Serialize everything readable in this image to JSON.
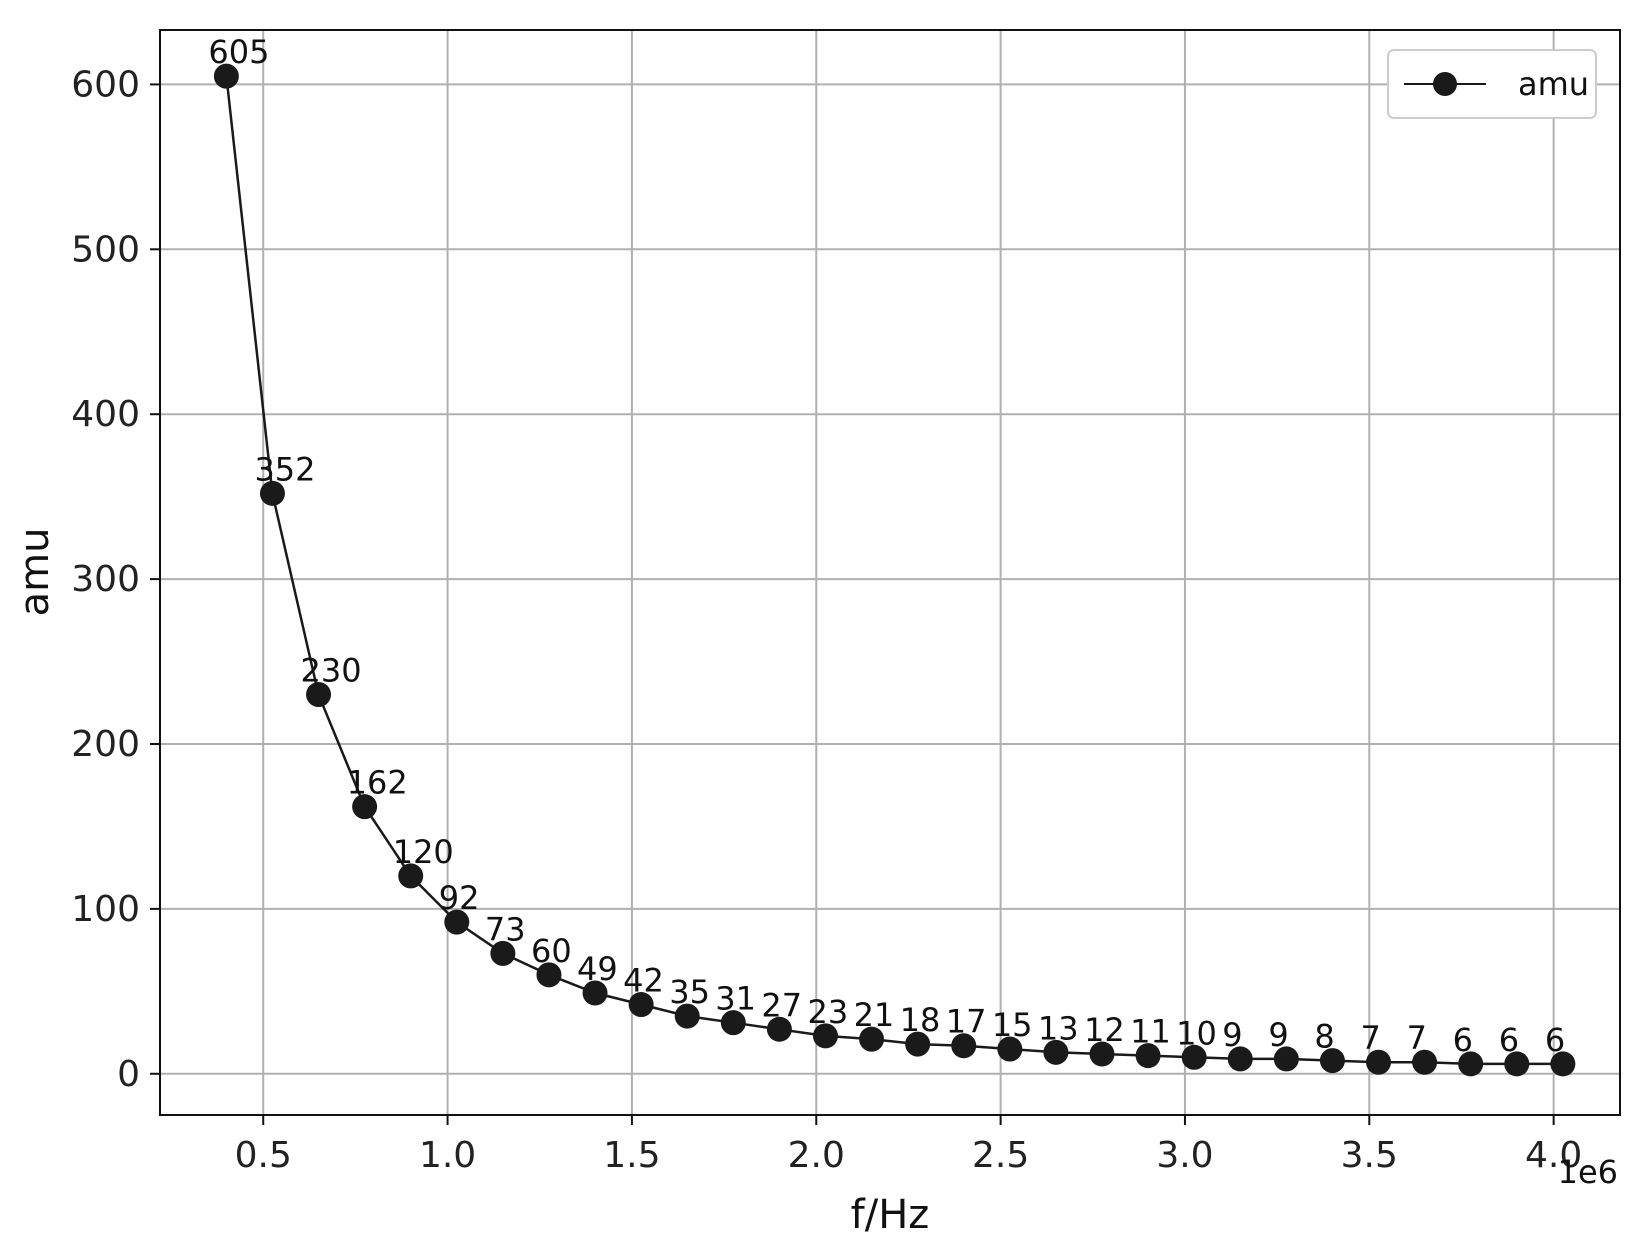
{
  "chart_data": {
    "type": "line",
    "xlabel": "f/Hz",
    "ylabel": "amu",
    "x_offset_label": "1e6",
    "xlim": [
      0.22,
      4.18
    ],
    "ylim": [
      -25,
      633
    ],
    "grid": true,
    "legend_position": "top-right",
    "x_ticks": [
      0.5,
      1.0,
      1.5,
      2.0,
      2.5,
      3.0,
      3.5,
      4.0
    ],
    "x_tick_labels": [
      "0.5",
      "1.0",
      "1.5",
      "2.0",
      "2.5",
      "3.0",
      "3.5",
      "4.0"
    ],
    "y_ticks": [
      0,
      100,
      200,
      300,
      400,
      500,
      600
    ],
    "y_tick_labels": [
      "0",
      "100",
      "200",
      "300",
      "400",
      "500",
      "600"
    ],
    "series": [
      {
        "name": "amu",
        "color": "#1a1a1a",
        "marker": "circle",
        "x": [
          0.4,
          0.525,
          0.65,
          0.775,
          0.9,
          1.025,
          1.15,
          1.275,
          1.4,
          1.525,
          1.65,
          1.775,
          1.9,
          2.025,
          2.15,
          2.275,
          2.4,
          2.525,
          2.65,
          2.775,
          2.9,
          3.025,
          3.15,
          3.275,
          3.4,
          3.525,
          3.65,
          3.775,
          3.9,
          4.025
        ],
        "values": [
          605,
          352,
          230,
          162,
          120,
          92,
          73,
          60,
          49,
          42,
          35,
          31,
          27,
          23,
          21,
          18,
          17,
          15,
          13,
          12,
          11,
          10,
          9,
          9,
          8,
          7,
          7,
          6,
          6,
          6
        ],
        "labels": [
          "605",
          "352",
          "230",
          "162",
          "120",
          "92",
          "73",
          "60",
          "49",
          "42",
          "35",
          "31",
          "27",
          "23",
          "21",
          "18",
          "17",
          "15",
          "13",
          "12",
          "11",
          "10",
          "9",
          "9",
          "8",
          "7",
          "7",
          "6",
          "6",
          "6"
        ]
      }
    ]
  }
}
